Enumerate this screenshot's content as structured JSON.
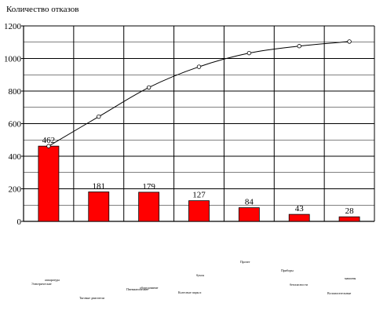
{
  "chart_data": {
    "type": "bar",
    "title": "Количество отказов",
    "ylim": [
      0,
      1200
    ],
    "yticks": [
      0,
      200,
      400,
      600,
      800,
      1000,
      1200
    ],
    "grid": true,
    "legend": "none",
    "categories": [
      [
        "Электрические",
        "аппаратура"
      ],
      [
        "Тяговые двигатели"
      ],
      [
        "Пневматическое",
        "оборудование"
      ],
      [
        "Колесные пары и",
        "буксы"
      ],
      [
        "Прочее"
      ],
      [
        "Приборы",
        "безопасности"
      ],
      [
        "Вспомогательные",
        "машины"
      ]
    ],
    "series": [
      {
        "type": "bar",
        "values": [
          462,
          181,
          179,
          127,
          84,
          43,
          28
        ],
        "color": "#ff0000"
      },
      {
        "type": "line",
        "values": [
          462,
          643,
          822,
          949,
          1033,
          1076,
          1104
        ],
        "color": "#000000"
      }
    ]
  }
}
